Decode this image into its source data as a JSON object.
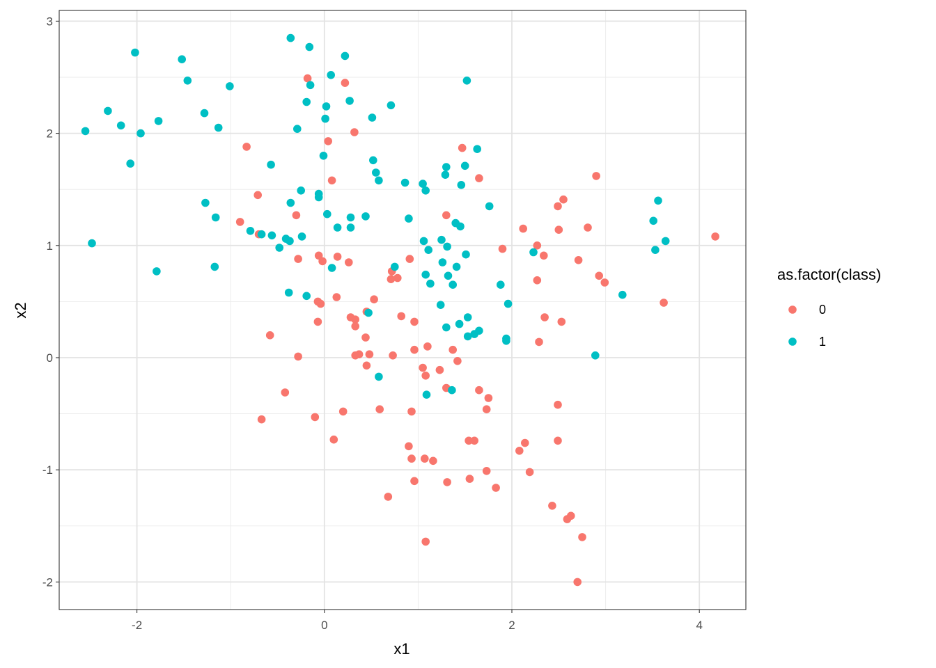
{
  "chart_data": {
    "type": "scatter",
    "xlabel": "x1",
    "ylabel": "x2",
    "xlim": [
      -2.85,
      4.5
    ],
    "ylim": [
      -2.25,
      3.1
    ],
    "x_ticks": [
      -2,
      0,
      2,
      4
    ],
    "y_ticks": [
      -2,
      -1,
      0,
      1,
      2,
      3
    ],
    "x_tick_labels": [
      "-2",
      "0",
      "2",
      "4"
    ],
    "y_tick_labels": [
      "-2",
      "-1",
      "0",
      "1",
      "2",
      "3"
    ],
    "grid": true,
    "legend": {
      "title": "as.factor(class)",
      "placement": "right"
    },
    "series": [
      {
        "name": "0",
        "color": "#F8766D",
        "points": [
          [
            -0.18,
            2.49
          ],
          [
            0.22,
            2.45
          ],
          [
            0.32,
            2.01
          ],
          [
            0.04,
            1.93
          ],
          [
            -0.83,
            1.88
          ],
          [
            1.47,
            1.87
          ],
          [
            2.9,
            1.62
          ],
          [
            1.65,
            1.6
          ],
          [
            0.08,
            1.58
          ],
          [
            -0.71,
            1.45
          ],
          [
            2.55,
            1.41
          ],
          [
            2.49,
            1.35
          ],
          [
            -0.3,
            1.27
          ],
          [
            1.3,
            1.27
          ],
          [
            -0.9,
            1.21
          ],
          [
            -0.7,
            1.1
          ],
          [
            2.12,
            1.15
          ],
          [
            2.5,
            1.14
          ],
          [
            2.81,
            1.16
          ],
          [
            4.17,
            1.08
          ],
          [
            2.27,
            1.0
          ],
          [
            1.9,
            0.97
          ],
          [
            -0.06,
            0.91
          ],
          [
            0.14,
            0.9
          ],
          [
            2.34,
            0.91
          ],
          [
            -0.28,
            0.88
          ],
          [
            -0.02,
            0.86
          ],
          [
            0.26,
            0.85
          ],
          [
            0.91,
            0.88
          ],
          [
            2.71,
            0.87
          ],
          [
            0.72,
            0.77
          ],
          [
            0.78,
            0.71
          ],
          [
            0.71,
            0.7
          ],
          [
            2.93,
            0.73
          ],
          [
            2.99,
            0.67
          ],
          [
            2.27,
            0.69
          ],
          [
            0.13,
            0.54
          ],
          [
            0.53,
            0.52
          ],
          [
            -0.07,
            0.5
          ],
          [
            -0.04,
            0.48
          ],
          [
            3.62,
            0.49
          ],
          [
            0.45,
            0.41
          ],
          [
            0.82,
            0.37
          ],
          [
            0.28,
            0.36
          ],
          [
            0.33,
            0.34
          ],
          [
            2.35,
            0.36
          ],
          [
            -0.07,
            0.32
          ],
          [
            0.96,
            0.32
          ],
          [
            2.53,
            0.32
          ],
          [
            0.33,
            0.28
          ],
          [
            -0.58,
            0.2
          ],
          [
            0.44,
            0.18
          ],
          [
            2.29,
            0.14
          ],
          [
            1.1,
            0.1
          ],
          [
            0.96,
            0.07
          ],
          [
            1.37,
            0.07
          ],
          [
            0.37,
            0.03
          ],
          [
            0.48,
            0.03
          ],
          [
            0.33,
            0.02
          ],
          [
            0.73,
            0.02
          ],
          [
            -0.28,
            0.01
          ],
          [
            1.42,
            -0.03
          ],
          [
            0.45,
            -0.07
          ],
          [
            1.05,
            -0.09
          ],
          [
            1.23,
            -0.11
          ],
          [
            1.08,
            -0.16
          ],
          [
            1.3,
            -0.27
          ],
          [
            1.65,
            -0.29
          ],
          [
            -0.42,
            -0.31
          ],
          [
            1.75,
            -0.36
          ],
          [
            2.49,
            -0.42
          ],
          [
            0.59,
            -0.46
          ],
          [
            1.73,
            -0.46
          ],
          [
            0.2,
            -0.48
          ],
          [
            0.93,
            -0.48
          ],
          [
            -0.1,
            -0.53
          ],
          [
            -0.67,
            -0.55
          ],
          [
            0.1,
            -0.73
          ],
          [
            1.54,
            -0.74
          ],
          [
            1.6,
            -0.74
          ],
          [
            2.49,
            -0.74
          ],
          [
            2.14,
            -0.76
          ],
          [
            0.9,
            -0.79
          ],
          [
            2.08,
            -0.83
          ],
          [
            0.93,
            -0.9
          ],
          [
            1.07,
            -0.9
          ],
          [
            1.16,
            -0.92
          ],
          [
            1.73,
            -1.01
          ],
          [
            2.19,
            -1.02
          ],
          [
            1.55,
            -1.08
          ],
          [
            0.96,
            -1.1
          ],
          [
            1.31,
            -1.11
          ],
          [
            1.83,
            -1.16
          ],
          [
            0.68,
            -1.24
          ],
          [
            2.43,
            -1.32
          ],
          [
            2.63,
            -1.41
          ],
          [
            2.59,
            -1.44
          ],
          [
            2.75,
            -1.6
          ],
          [
            1.08,
            -1.64
          ],
          [
            2.7,
            -2.0
          ]
        ]
      },
      {
        "name": "1",
        "color": "#00BFC4",
        "points": [
          [
            -0.36,
            2.85
          ],
          [
            -0.16,
            2.77
          ],
          [
            -2.02,
            2.72
          ],
          [
            0.22,
            2.69
          ],
          [
            -1.52,
            2.66
          ],
          [
            0.07,
            2.52
          ],
          [
            1.52,
            2.47
          ],
          [
            -1.46,
            2.47
          ],
          [
            -0.15,
            2.43
          ],
          [
            -1.01,
            2.42
          ],
          [
            0.27,
            2.29
          ],
          [
            -0.19,
            2.28
          ],
          [
            0.02,
            2.24
          ],
          [
            0.71,
            2.25
          ],
          [
            -2.31,
            2.2
          ],
          [
            -1.28,
            2.18
          ],
          [
            0.51,
            2.14
          ],
          [
            0.01,
            2.13
          ],
          [
            -1.77,
            2.11
          ],
          [
            -2.17,
            2.07
          ],
          [
            -1.13,
            2.05
          ],
          [
            -0.29,
            2.04
          ],
          [
            -2.55,
            2.02
          ],
          [
            -1.96,
            2.0
          ],
          [
            1.63,
            1.86
          ],
          [
            -0.01,
            1.8
          ],
          [
            0.52,
            1.76
          ],
          [
            -2.07,
            1.73
          ],
          [
            -0.57,
            1.72
          ],
          [
            1.3,
            1.7
          ],
          [
            1.5,
            1.71
          ],
          [
            0.55,
            1.65
          ],
          [
            1.29,
            1.63
          ],
          [
            0.58,
            1.58
          ],
          [
            0.86,
            1.56
          ],
          [
            1.05,
            1.55
          ],
          [
            1.46,
            1.54
          ],
          [
            1.08,
            1.49
          ],
          [
            -0.25,
            1.49
          ],
          [
            -0.06,
            1.46
          ],
          [
            -0.06,
            1.43
          ],
          [
            -0.36,
            1.38
          ],
          [
            -1.27,
            1.38
          ],
          [
            1.76,
            1.35
          ],
          [
            3.56,
            1.4
          ],
          [
            0.03,
            1.28
          ],
          [
            0.44,
            1.26
          ],
          [
            0.28,
            1.25
          ],
          [
            0.9,
            1.24
          ],
          [
            -1.16,
            1.25
          ],
          [
            3.51,
            1.22
          ],
          [
            1.4,
            1.2
          ],
          [
            1.45,
            1.17
          ],
          [
            0.14,
            1.16
          ],
          [
            0.28,
            1.16
          ],
          [
            -0.79,
            1.13
          ],
          [
            -0.67,
            1.1
          ],
          [
            -0.56,
            1.09
          ],
          [
            -0.24,
            1.08
          ],
          [
            -0.41,
            1.06
          ],
          [
            -0.37,
            1.04
          ],
          [
            1.06,
            1.04
          ],
          [
            1.25,
            1.05
          ],
          [
            3.64,
            1.04
          ],
          [
            -2.48,
            1.02
          ],
          [
            -0.48,
            0.98
          ],
          [
            1.31,
            0.99
          ],
          [
            1.11,
            0.96
          ],
          [
            3.53,
            0.96
          ],
          [
            2.23,
            0.94
          ],
          [
            1.51,
            0.92
          ],
          [
            1.26,
            0.85
          ],
          [
            -1.17,
            0.81
          ],
          [
            1.41,
            0.81
          ],
          [
            0.75,
            0.81
          ],
          [
            0.08,
            0.8
          ],
          [
            -1.79,
            0.77
          ],
          [
            1.08,
            0.74
          ],
          [
            1.32,
            0.73
          ],
          [
            1.13,
            0.66
          ],
          [
            1.37,
            0.65
          ],
          [
            1.88,
            0.65
          ],
          [
            -0.38,
            0.58
          ],
          [
            -0.19,
            0.55
          ],
          [
            3.18,
            0.56
          ],
          [
            1.24,
            0.47
          ],
          [
            1.96,
            0.48
          ],
          [
            0.47,
            0.4
          ],
          [
            1.53,
            0.36
          ],
          [
            1.44,
            0.3
          ],
          [
            1.3,
            0.27
          ],
          [
            1.65,
            0.24
          ],
          [
            1.6,
            0.21
          ],
          [
            1.53,
            0.19
          ],
          [
            1.94,
            0.17
          ],
          [
            1.94,
            0.15
          ],
          [
            2.89,
            0.02
          ],
          [
            0.58,
            -0.17
          ],
          [
            1.09,
            -0.33
          ],
          [
            1.36,
            -0.29
          ]
        ]
      }
    ]
  }
}
